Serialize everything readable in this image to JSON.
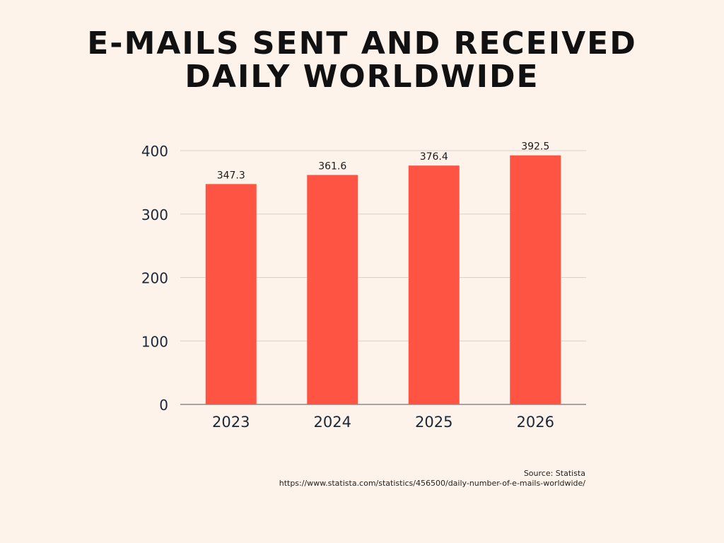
{
  "title_lines": [
    "E-MAILS SENT AND RECEIVED",
    "DAILY WORLDWIDE"
  ],
  "chart_data": {
    "type": "bar",
    "title": "E-MAILS SENT AND RECEIVED DAILY WORLDWIDE",
    "categories": [
      "2023",
      "2024",
      "2025",
      "2026"
    ],
    "values": [
      347.3,
      361.6,
      376.4,
      392.5
    ],
    "data_labels": [
      "347.3",
      "361.6",
      "376.4",
      "392.5"
    ],
    "xlabel": "",
    "ylabel": "",
    "ylim": [
      0,
      400
    ],
    "yticks": [
      0,
      100,
      200,
      300,
      400
    ],
    "grid": true,
    "legend": "none",
    "bar_color": "#fd5444",
    "grid_color": "#d8d2cc",
    "axis_color": "#8a8a8a"
  },
  "source": {
    "line1": "Source: Statista",
    "line2": "https://www.statista.com/statistics/456500/daily-number-of-e-mails-worldwide/"
  },
  "colors": {
    "background": "#fdf3ea",
    "text": "#111111",
    "axis_text": "#1a2838"
  }
}
